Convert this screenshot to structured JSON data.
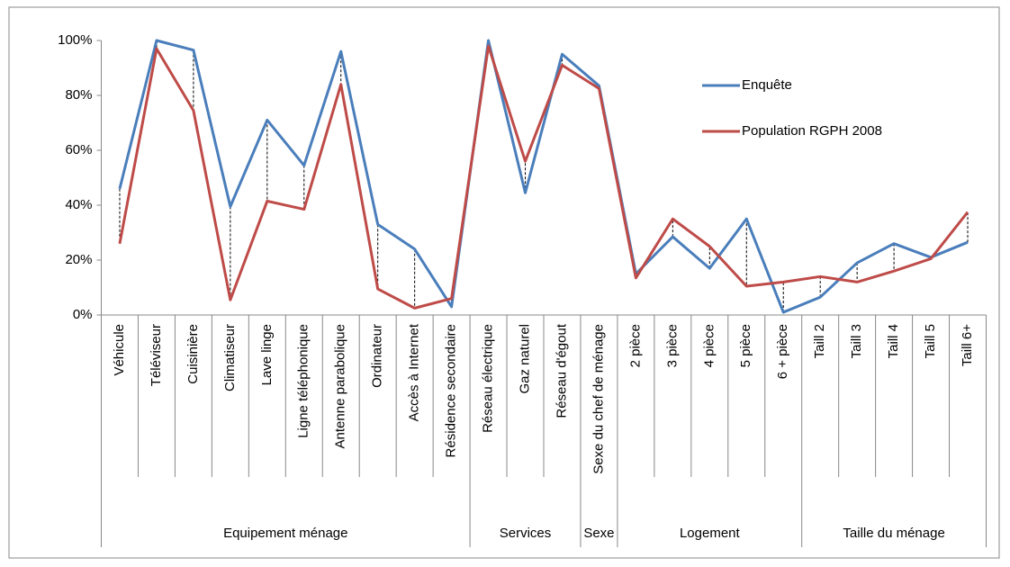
{
  "chart_data": {
    "type": "line",
    "groups": [
      {
        "name": "Equipement ménage",
        "categories": [
          "Véhicule",
          "Téléviseur",
          "Cuisinière",
          "Climatiseur",
          "Lave linge",
          "Ligne téléphonique",
          "Antenne parabolique",
          "Ordinateur",
          "Accès à Internet",
          "Résidence secondaire"
        ]
      },
      {
        "name": "Services",
        "categories": [
          "Réseau électrique",
          "Gaz naturel",
          "Réseau d'égout"
        ]
      },
      {
        "name": "Sexe",
        "categories": [
          "Sexe du chef de ménage"
        ]
      },
      {
        "name": "Logement",
        "categories": [
          "2 pièce",
          "3 pièce",
          "4 pièce",
          "5 pièce",
          "6 + pièce"
        ]
      },
      {
        "name": "Taille du ménage",
        "categories": [
          "Taill 2",
          "Taill 3",
          "Taill 4",
          "Taill 5",
          "Taill 6+"
        ]
      }
    ],
    "series": [
      {
        "name": "Enquête",
        "color": "#4a7ebb",
        "values": [
          46,
          100,
          96.5,
          39.5,
          71,
          54.5,
          96,
          33,
          24,
          3,
          100,
          44.5,
          95,
          83.5,
          15,
          28.5,
          17,
          35,
          1,
          6.5,
          19,
          26,
          21,
          26.5
        ]
      },
      {
        "name": "Population RGPH 2008",
        "color": "#be4b48",
        "values": [
          26,
          97,
          74.5,
          5.5,
          41.5,
          38.5,
          84,
          9.5,
          2.5,
          6,
          98,
          56,
          91,
          82.5,
          13.5,
          35,
          25,
          10.5,
          12,
          14,
          12,
          16,
          20.5,
          37.5
        ]
      }
    ],
    "ylim": [
      0,
      100
    ],
    "yticks": [
      {
        "value": 0,
        "label": "0%"
      },
      {
        "value": 20,
        "label": "20%"
      },
      {
        "value": 40,
        "label": "40%"
      },
      {
        "value": 60,
        "label": "60%"
      },
      {
        "value": 80,
        "label": "80%"
      },
      {
        "value": 100,
        "label": "100%"
      }
    ],
    "drop_lines": true,
    "legend_position": "top-right"
  }
}
